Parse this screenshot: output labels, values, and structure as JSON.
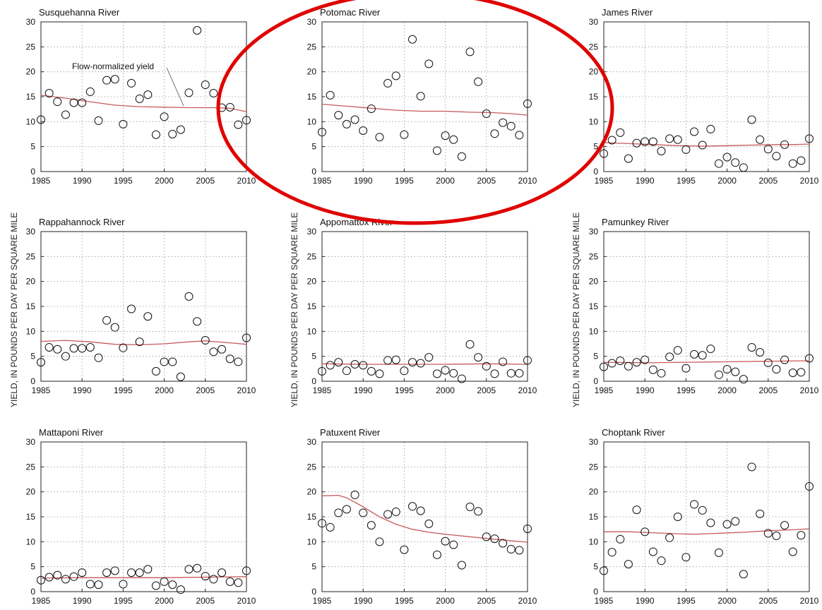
{
  "figure": {
    "ylabel": "YIELD, IN POUNDS PER DAY PER SQUARE MILE",
    "annotation": "Flow-normalized yield",
    "highlight_color": "#e00000",
    "trend_color": "#c85a5a"
  },
  "chart_data": [
    {
      "type": "scatter",
      "title": "Susquehanna River",
      "xlim": [
        1985,
        2010
      ],
      "ylim": [
        0,
        30
      ],
      "xticks": [
        1985,
        1990,
        1995,
        2000,
        2005,
        2010
      ],
      "yticks": [
        0,
        5,
        10,
        15,
        20,
        25,
        30
      ],
      "grid": true,
      "x": [
        1985,
        1986,
        1987,
        1988,
        1989,
        1990,
        1991,
        1992,
        1993,
        1994,
        1995,
        1996,
        1997,
        1998,
        1999,
        2000,
        2001,
        2002,
        2003,
        2004,
        2005,
        2006,
        2007,
        2008,
        2009,
        2010
      ],
      "y": [
        10.4,
        15.7,
        14.0,
        11.4,
        13.8,
        13.8,
        16.0,
        10.2,
        18.3,
        18.5,
        9.5,
        17.7,
        14.6,
        15.4,
        7.4,
        11.0,
        7.5,
        8.4,
        15.8,
        28.3,
        17.4,
        15.7,
        12.8,
        12.9,
        9.4,
        10.3
      ],
      "trend": [
        [
          1985,
          15.3
        ],
        [
          1988,
          14.7
        ],
        [
          1991,
          14.0
        ],
        [
          1994,
          13.3
        ],
        [
          1997,
          13.0
        ],
        [
          2000,
          12.9
        ],
        [
          2003,
          12.8
        ],
        [
          2006,
          12.8
        ],
        [
          2008,
          12.7
        ],
        [
          2010,
          12.0
        ]
      ]
    },
    {
      "type": "scatter",
      "title": "Potomac River",
      "xlim": [
        1985,
        2010
      ],
      "ylim": [
        0,
        30
      ],
      "xticks": [
        1985,
        1990,
        1995,
        2000,
        2005,
        2010
      ],
      "yticks": [
        0,
        5,
        10,
        15,
        20,
        25,
        30
      ],
      "grid": true,
      "x": [
        1985,
        1986,
        1987,
        1988,
        1989,
        1990,
        1991,
        1992,
        1993,
        1994,
        1995,
        1996,
        1997,
        1998,
        1999,
        2000,
        2001,
        2002,
        2003,
        2004,
        2005,
        2006,
        2007,
        2008,
        2009,
        2010
      ],
      "y": [
        7.9,
        15.3,
        11.3,
        9.5,
        10.4,
        8.2,
        12.6,
        6.9,
        17.7,
        19.2,
        7.4,
        26.5,
        15.1,
        21.6,
        4.2,
        7.2,
        6.4,
        3.0,
        24.0,
        18.0,
        11.6,
        7.6,
        9.8,
        9.1,
        7.3,
        13.6
      ],
      "trend": [
        [
          1985,
          13.5
        ],
        [
          1988,
          13.1
        ],
        [
          1991,
          12.7
        ],
        [
          1994,
          12.3
        ],
        [
          1997,
          12.1
        ],
        [
          2000,
          12.1
        ],
        [
          2003,
          11.9
        ],
        [
          2006,
          11.8
        ],
        [
          2008,
          11.6
        ],
        [
          2010,
          11.3
        ]
      ]
    },
    {
      "type": "scatter",
      "title": "James River",
      "xlim": [
        1985,
        2010
      ],
      "ylim": [
        0,
        30
      ],
      "xticks": [
        1985,
        1990,
        1995,
        2000,
        2005,
        2010
      ],
      "yticks": [
        0,
        5,
        10,
        15,
        20,
        25,
        30
      ],
      "grid": true,
      "x": [
        1985,
        1986,
        1987,
        1988,
        1989,
        1990,
        1991,
        1992,
        1993,
        1994,
        1995,
        1996,
        1997,
        1998,
        1999,
        2000,
        2001,
        2002,
        2003,
        2004,
        2005,
        2006,
        2007,
        2008,
        2009,
        2010
      ],
      "y": [
        3.6,
        6.3,
        7.8,
        2.6,
        5.7,
        6.0,
        6.0,
        4.1,
        6.6,
        6.4,
        4.4,
        8.0,
        5.3,
        8.5,
        1.6,
        2.9,
        1.8,
        0.8,
        10.4,
        6.4,
        4.5,
        3.1,
        5.4,
        1.6,
        2.2,
        6.6
      ],
      "trend": [
        [
          1985,
          5.8
        ],
        [
          1988,
          5.6
        ],
        [
          1991,
          5.4
        ],
        [
          1994,
          5.2
        ],
        [
          1997,
          5.1
        ],
        [
          2000,
          5.2
        ],
        [
          2003,
          5.3
        ],
        [
          2006,
          5.4
        ],
        [
          2008,
          5.4
        ],
        [
          2010,
          5.5
        ]
      ]
    },
    {
      "type": "scatter",
      "title": "Rappahannock River",
      "xlim": [
        1985,
        2010
      ],
      "ylim": [
        0,
        30
      ],
      "xticks": [
        1985,
        1990,
        1995,
        2000,
        2005,
        2010
      ],
      "yticks": [
        0,
        5,
        10,
        15,
        20,
        25,
        30
      ],
      "grid": true,
      "x": [
        1985,
        1986,
        1987,
        1988,
        1989,
        1990,
        1991,
        1992,
        1993,
        1994,
        1995,
        1996,
        1997,
        1998,
        1999,
        2000,
        2001,
        2002,
        2003,
        2004,
        2005,
        2006,
        2007,
        2008,
        2009,
        2010
      ],
      "y": [
        3.8,
        6.8,
        6.4,
        5.0,
        6.6,
        6.6,
        6.8,
        4.7,
        12.2,
        10.8,
        6.7,
        14.5,
        7.9,
        13.0,
        2.0,
        3.9,
        3.9,
        0.9,
        17.0,
        12.0,
        8.2,
        5.9,
        6.4,
        4.5,
        3.9,
        8.7
      ],
      "trend": [
        [
          1985,
          8.0
        ],
        [
          1988,
          8.2
        ],
        [
          1991,
          7.9
        ],
        [
          1994,
          7.4
        ],
        [
          1997,
          7.3
        ],
        [
          2000,
          7.5
        ],
        [
          2003,
          7.9
        ],
        [
          2005,
          8.1
        ],
        [
          2008,
          7.7
        ],
        [
          2010,
          7.4
        ]
      ]
    },
    {
      "type": "scatter",
      "title": "Appomattox River",
      "xlim": [
        1985,
        2010
      ],
      "ylim": [
        0,
        30
      ],
      "xticks": [
        1985,
        1990,
        1995,
        2000,
        2005,
        2010
      ],
      "yticks": [
        0,
        5,
        10,
        15,
        20,
        25,
        30
      ],
      "grid": true,
      "x": [
        1985,
        1986,
        1987,
        1988,
        1989,
        1990,
        1991,
        1992,
        1993,
        1994,
        1995,
        1996,
        1997,
        1998,
        1999,
        2000,
        2001,
        2002,
        2003,
        2004,
        2005,
        2006,
        2007,
        2008,
        2009,
        2010
      ],
      "y": [
        2.0,
        3.2,
        3.8,
        2.1,
        3.4,
        3.2,
        2.0,
        1.5,
        4.2,
        4.3,
        2.1,
        3.8,
        3.6,
        4.8,
        1.5,
        2.2,
        1.6,
        0.5,
        7.4,
        4.8,
        3.0,
        1.5,
        3.9,
        1.6,
        1.6,
        4.2
      ],
      "trend": [
        [
          1985,
          3.5
        ],
        [
          1990,
          3.4
        ],
        [
          1995,
          3.4
        ],
        [
          2000,
          3.4
        ],
        [
          2005,
          3.5
        ],
        [
          2010,
          3.4
        ]
      ]
    },
    {
      "type": "scatter",
      "title": "Pamunkey River",
      "xlim": [
        1985,
        2010
      ],
      "ylim": [
        0,
        30
      ],
      "xticks": [
        1985,
        1990,
        1995,
        2000,
        2005,
        2010
      ],
      "yticks": [
        0,
        5,
        10,
        15,
        20,
        25,
        30
      ],
      "grid": true,
      "x": [
        1985,
        1986,
        1987,
        1988,
        1989,
        1990,
        1991,
        1992,
        1993,
        1994,
        1995,
        1996,
        1997,
        1998,
        1999,
        2000,
        2001,
        2002,
        2003,
        2004,
        2005,
        2006,
        2007,
        2008,
        2009,
        2010
      ],
      "y": [
        2.9,
        3.6,
        4.1,
        3.0,
        3.8,
        4.3,
        2.3,
        1.6,
        4.9,
        6.2,
        2.6,
        5.4,
        5.2,
        6.5,
        1.3,
        2.4,
        1.9,
        0.4,
        6.8,
        5.8,
        3.7,
        2.4,
        4.3,
        1.7,
        1.8,
        4.6
      ],
      "trend": [
        [
          1985,
          3.8
        ],
        [
          1990,
          3.7
        ],
        [
          1995,
          3.8
        ],
        [
          2000,
          3.9
        ],
        [
          2005,
          4.0
        ],
        [
          2010,
          4.1
        ]
      ]
    },
    {
      "type": "scatter",
      "title": "Mattaponi River",
      "xlim": [
        1985,
        2010
      ],
      "ylim": [
        0,
        30
      ],
      "xticks": [
        1985,
        1990,
        1995,
        2000,
        2005,
        2010
      ],
      "yticks": [
        0,
        5,
        10,
        15,
        20,
        25,
        30
      ],
      "grid": true,
      "x": [
        1985,
        1986,
        1987,
        1988,
        1989,
        1990,
        1991,
        1992,
        1993,
        1994,
        1995,
        1996,
        1997,
        1998,
        1999,
        2000,
        2001,
        2002,
        2003,
        2004,
        2005,
        2006,
        2007,
        2008,
        2009,
        2010
      ],
      "y": [
        2.3,
        2.9,
        3.3,
        2.5,
        3.0,
        3.8,
        1.5,
        1.4,
        3.8,
        4.2,
        1.5,
        3.8,
        3.8,
        4.5,
        1.2,
        2.0,
        1.4,
        0.4,
        4.5,
        4.7,
        3.1,
        2.5,
        3.8,
        2.0,
        1.8,
        4.2
      ],
      "trend": [
        [
          1985,
          2.7
        ],
        [
          1990,
          2.8
        ],
        [
          1995,
          2.8
        ],
        [
          2000,
          2.8
        ],
        [
          2005,
          2.9
        ],
        [
          2010,
          3.0
        ]
      ]
    },
    {
      "type": "scatter",
      "title": "Patuxent River",
      "xlim": [
        1985,
        2010
      ],
      "ylim": [
        0,
        30
      ],
      "xticks": [
        1985,
        1990,
        1995,
        2000,
        2005,
        2010
      ],
      "yticks": [
        0,
        5,
        10,
        15,
        20,
        25,
        30
      ],
      "grid": true,
      "x": [
        1985,
        1986,
        1987,
        1988,
        1989,
        1990,
        1991,
        1992,
        1993,
        1994,
        1995,
        1996,
        1997,
        1998,
        1999,
        2000,
        2001,
        2002,
        2003,
        2004,
        2005,
        2006,
        2007,
        2008,
        2009,
        2010
      ],
      "y": [
        13.7,
        12.9,
        15.8,
        16.5,
        19.4,
        15.8,
        13.3,
        10.0,
        15.5,
        16.0,
        8.4,
        17.1,
        16.2,
        13.6,
        7.4,
        10.1,
        9.4,
        5.3,
        17.0,
        16.1,
        11.0,
        10.6,
        9.7,
        8.5,
        8.3,
        12.6
      ],
      "trend": [
        [
          1985,
          19.2
        ],
        [
          1987,
          19.3
        ],
        [
          1988,
          18.8
        ],
        [
          1990,
          17.0
        ],
        [
          1992,
          15.0
        ],
        [
          1994,
          13.5
        ],
        [
          1996,
          12.5
        ],
        [
          1998,
          11.9
        ],
        [
          2000,
          11.5
        ],
        [
          2003,
          11.0
        ],
        [
          2006,
          10.5
        ],
        [
          2010,
          9.9
        ]
      ]
    },
    {
      "type": "scatter",
      "title": "Choptank River",
      "xlim": [
        1985,
        2010
      ],
      "ylim": [
        0,
        30
      ],
      "xticks": [
        1985,
        1990,
        1995,
        2000,
        2005,
        2010
      ],
      "yticks": [
        0,
        5,
        10,
        15,
        20,
        25,
        30
      ],
      "grid": true,
      "x": [
        1985,
        1986,
        1987,
        1988,
        1989,
        1990,
        1991,
        1992,
        1993,
        1994,
        1995,
        1996,
        1997,
        1998,
        1999,
        2000,
        2001,
        2002,
        2003,
        2004,
        2005,
        2006,
        2007,
        2008,
        2009,
        2010
      ],
      "y": [
        4.2,
        7.9,
        10.5,
        5.5,
        16.4,
        12.0,
        8.0,
        6.2,
        10.8,
        15.0,
        6.9,
        17.5,
        16.3,
        13.8,
        7.8,
        13.5,
        14.1,
        3.5,
        25.0,
        15.6,
        11.7,
        11.2,
        13.3,
        8.0,
        11.3,
        21.1
      ],
      "trend": [
        [
          1985,
          12.0
        ],
        [
          1988,
          12.0
        ],
        [
          1991,
          11.8
        ],
        [
          1994,
          11.6
        ],
        [
          1996,
          11.5
        ],
        [
          1999,
          11.7
        ],
        [
          2002,
          11.9
        ],
        [
          2005,
          12.2
        ],
        [
          2008,
          12.4
        ],
        [
          2010,
          12.6
        ]
      ]
    }
  ]
}
